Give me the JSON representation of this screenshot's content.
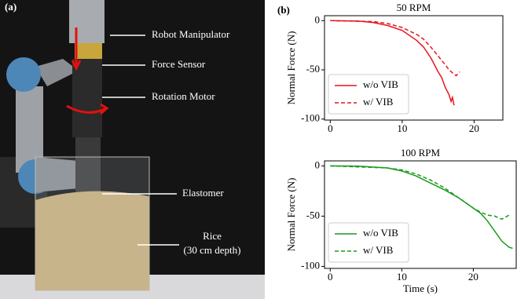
{
  "panel_labels": [
    "(a)",
    "(b)"
  ],
  "photo": {
    "annotations": [
      "Robot Manipulator",
      "Force Sensor",
      "Rotation Motor",
      "Elastomer",
      "Rice",
      "(30 cm depth)"
    ]
  },
  "chart_data": [
    {
      "type": "line",
      "title": "50 RPM",
      "ylabel": "Normal Force (N)",
      "xlim": [
        -0.8,
        24
      ],
      "ylim": [
        -101,
        5
      ],
      "xticks": [
        0,
        10,
        20
      ],
      "yticks": [
        0,
        -50,
        -100
      ],
      "series": [
        {
          "name": "w/o VIB",
          "color": "#e8131b",
          "dash": false,
          "x": [
            0,
            4,
            6,
            8,
            10,
            12,
            13,
            14,
            15,
            15.5,
            16,
            16.5,
            16.8,
            17,
            17.2
          ],
          "values": [
            0,
            -0.5,
            -2,
            -5,
            -10,
            -20,
            -27,
            -38,
            -52,
            -58,
            -68,
            -75,
            -82,
            -78,
            -86
          ]
        },
        {
          "name": "w/ VIB",
          "color": "#e8131b",
          "dash": true,
          "x": [
            0,
            6,
            8,
            10,
            12,
            13,
            14,
            15,
            16,
            16.5,
            17,
            17.5,
            18
          ],
          "values": [
            0,
            -1,
            -3,
            -7,
            -14,
            -19,
            -27,
            -36,
            -45,
            -50,
            -53,
            -56,
            -52
          ]
        }
      ]
    },
    {
      "type": "line",
      "title": "100 RPM",
      "xlabel": "Time (s)",
      "ylabel": "Normal Force (N)",
      "xlim": [
        -0.8,
        26
      ],
      "ylim": [
        -102,
        5
      ],
      "xticks": [
        0,
        10,
        20
      ],
      "yticks": [
        0,
        -50,
        -100
      ],
      "series": [
        {
          "name": "w/o VIB",
          "color": "#1a9a1a",
          "dash": false,
          "x": [
            0,
            4,
            8,
            10,
            12,
            14,
            16,
            18,
            19,
            20,
            21,
            22,
            23,
            24,
            25,
            25.5
          ],
          "values": [
            0,
            -0.3,
            -2,
            -5,
            -10,
            -17,
            -24,
            -32,
            -37,
            -42,
            -47,
            -55,
            -65,
            -75,
            -81,
            -82
          ]
        },
        {
          "name": "w/ VIB",
          "color": "#1a9a1a",
          "dash": true,
          "x": [
            0,
            8,
            10,
            12,
            14,
            16,
            18,
            20,
            21,
            22,
            23,
            24,
            25
          ],
          "values": [
            0,
            -2,
            -4,
            -8,
            -14,
            -22,
            -32,
            -42,
            -46,
            -49,
            -50,
            -53,
            -49
          ]
        }
      ]
    }
  ]
}
